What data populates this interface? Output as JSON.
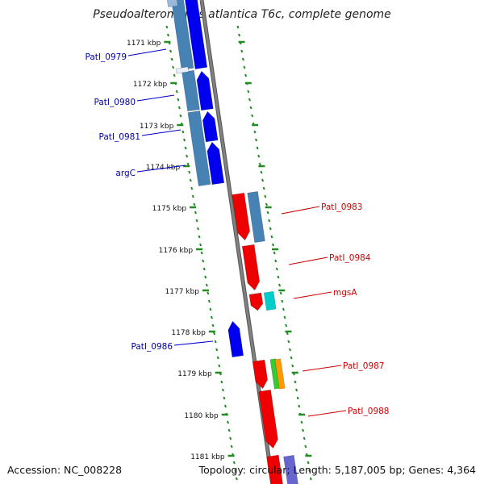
{
  "title": "Pseudoalteromonas atlantica T6c, complete genome",
  "footer": {
    "accession": "Accession: NC_008228",
    "stats": "Topology: circular; Length: 5,187,005 bp; Genes: 4,364"
  },
  "colors": {
    "forward_gene": "#0000ee",
    "reverse_gene": "#ee0000",
    "forward_cds": "#4682b4",
    "reverse_cds": "#4682b4",
    "backbone": "#808080",
    "tick": "#228b22",
    "rrna": "#00cccc",
    "trna_green": "#33cc33",
    "trna_orange": "#ff9900",
    "forward_label": "#0000aa",
    "reverse_label": "#cc0000"
  },
  "ticks": [
    {
      "label": "1171 kbp"
    },
    {
      "label": "1172 kbp"
    },
    {
      "label": "1173 kbp"
    },
    {
      "label": "1174 kbp"
    },
    {
      "label": "1175 kbp"
    },
    {
      "label": "1176 kbp"
    },
    {
      "label": "1177 kbp"
    },
    {
      "label": "1178 kbp"
    },
    {
      "label": "1179 kbp"
    },
    {
      "label": "1180 kbp"
    },
    {
      "label": "1181 kbp"
    }
  ],
  "forward_genes": [
    {
      "label": "PatI_0979"
    },
    {
      "label": "PatI_0980"
    },
    {
      "label": "PatI_0981"
    },
    {
      "label": "argC"
    },
    {
      "label": "PatI_0986"
    }
  ],
  "reverse_genes": [
    {
      "label": "PatI_0983"
    },
    {
      "label": "PatI_0984"
    },
    {
      "label": "mgsA"
    },
    {
      "label": "PatI_0987"
    },
    {
      "label": "PatI_0988"
    }
  ]
}
